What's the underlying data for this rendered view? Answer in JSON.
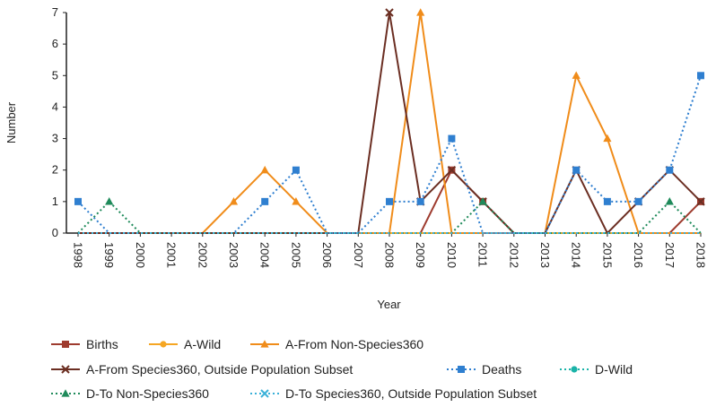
{
  "chart_data": {
    "type": "line",
    "title": "",
    "xlabel": "Year",
    "ylabel": "Number",
    "ylim": [
      0,
      7
    ],
    "yticks": [
      "0",
      "1",
      "2",
      "3",
      "4",
      "5",
      "6",
      "7"
    ],
    "grid": false,
    "legend_position": "bottom",
    "categories": [
      "1998",
      "1999",
      "2000",
      "2001",
      "2002",
      "2003",
      "2004",
      "2005",
      "2006",
      "2007",
      "2008",
      "2009",
      "2010",
      "2011",
      "2012",
      "2013",
      "2014",
      "2015",
      "2016",
      "2017",
      "2018"
    ],
    "series": [
      {
        "name": "Births",
        "color": "#9e3b2e",
        "marker": "square",
        "dash": "solid",
        "values": [
          0,
          0,
          0,
          0,
          0,
          0,
          0,
          0,
          0,
          0,
          0,
          0,
          2,
          1,
          0,
          0,
          0,
          0,
          0,
          0,
          1
        ]
      },
      {
        "name": "A-Wild",
        "color": "#f5a623",
        "marker": "circle",
        "dash": "solid",
        "values": [
          0,
          0,
          0,
          0,
          0,
          0,
          0,
          0,
          0,
          0,
          0,
          0,
          0,
          0,
          0,
          0,
          0,
          0,
          0,
          0,
          0
        ]
      },
      {
        "name": "A-From Non-Species360",
        "color": "#f08c1a",
        "marker": "triangle",
        "dash": "solid",
        "values": [
          0,
          0,
          0,
          0,
          0,
          1,
          2,
          1,
          0,
          0,
          0,
          7,
          0,
          0,
          0,
          0,
          5,
          3,
          0,
          0,
          0
        ]
      },
      {
        "name": "A-From Species360, Outside Population Subset",
        "color": "#6b2e22",
        "marker": "x",
        "dash": "solid",
        "values": [
          0,
          0,
          0,
          0,
          0,
          0,
          0,
          0,
          0,
          0,
          7,
          1,
          2,
          1,
          0,
          0,
          2,
          0,
          1,
          2,
          1
        ]
      },
      {
        "name": "Deaths",
        "color": "#2f7fd0",
        "marker": "square",
        "dash": "dotted",
        "values": [
          1,
          0,
          0,
          0,
          0,
          0,
          1,
          2,
          0,
          0,
          1,
          1,
          3,
          0,
          0,
          0,
          2,
          1,
          1,
          2,
          5
        ]
      },
      {
        "name": "D-Wild",
        "color": "#1bb3a8",
        "marker": "circle",
        "dash": "dotted",
        "values": [
          0,
          0,
          0,
          0,
          0,
          0,
          0,
          0,
          0,
          0,
          0,
          0,
          0,
          0,
          0,
          0,
          0,
          0,
          0,
          0,
          0
        ]
      },
      {
        "name": "D-To Non-Species360",
        "color": "#1e8a5a",
        "marker": "triangle",
        "dash": "dotted",
        "values": [
          0,
          1,
          0,
          0,
          0,
          0,
          0,
          0,
          0,
          0,
          0,
          0,
          0,
          1,
          0,
          0,
          0,
          0,
          0,
          1,
          0
        ]
      },
      {
        "name": "D-To Species360, Outside Population Subset",
        "color": "#3ab0d8",
        "marker": "x",
        "dash": "dotted",
        "values": [
          0,
          0,
          0,
          0,
          0,
          0,
          0,
          0,
          0,
          0,
          0,
          0,
          0,
          0,
          0,
          0,
          0,
          0,
          0,
          0,
          0
        ]
      }
    ]
  }
}
